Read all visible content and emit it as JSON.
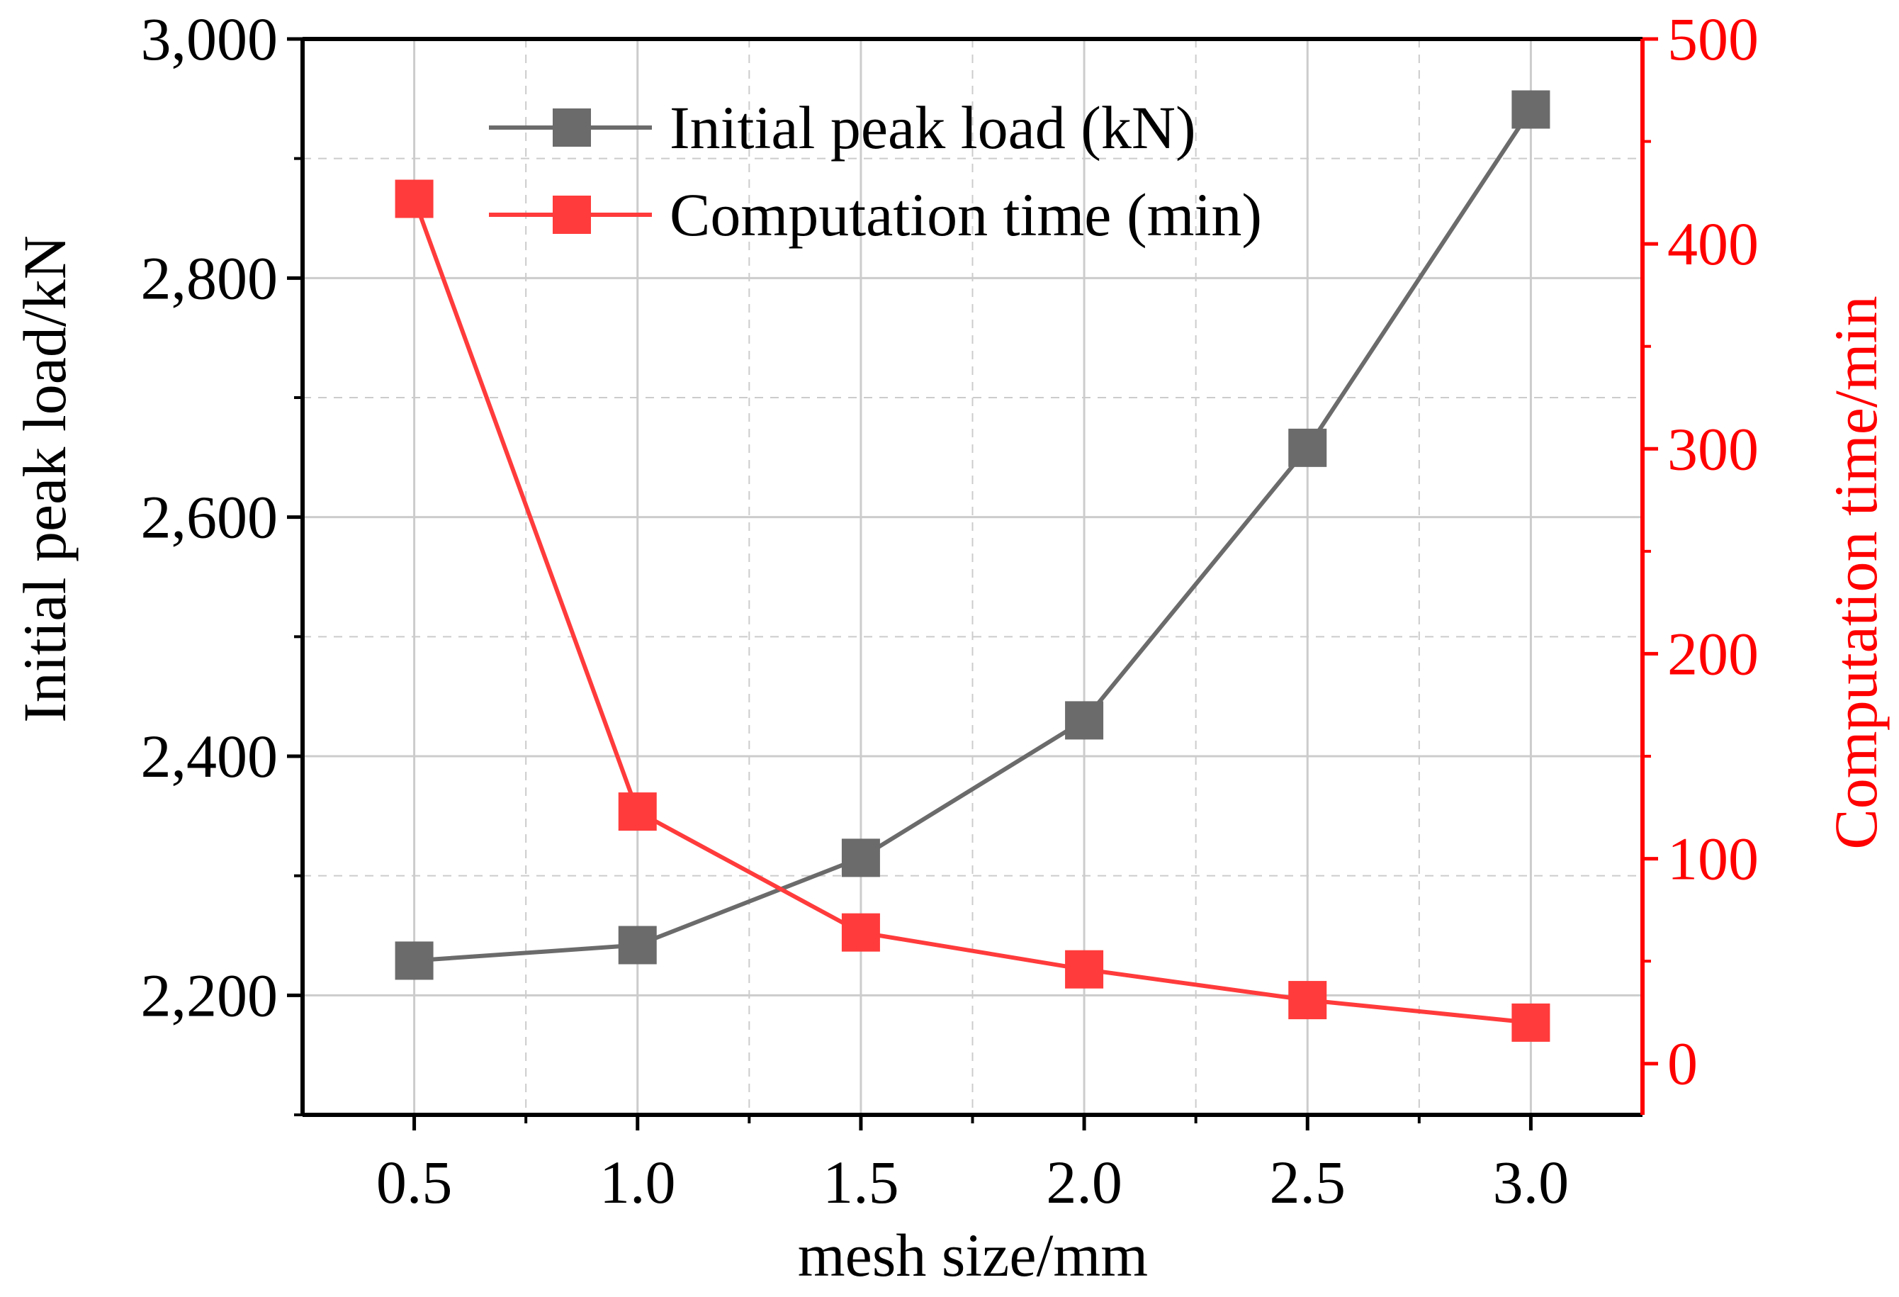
{
  "chart_data": {
    "type": "line",
    "x": [
      0.5,
      1.0,
      1.5,
      2.0,
      2.5,
      3.0
    ],
    "xlabel": "mesh size/mm",
    "xlim": [
      0.25,
      3.25
    ],
    "x_ticks": [
      "0.5",
      "1.0",
      "1.5",
      "2.0",
      "2.5",
      "3.0"
    ],
    "y_left": {
      "label": "Initial peak load/kN",
      "lim": [
        2100,
        3000
      ],
      "ticks": [
        "2,200",
        "2,400",
        "2,600",
        "2,800",
        "3,000"
      ],
      "color": "#000000"
    },
    "y_right": {
      "label": "Computation time/min",
      "lim": [
        -25,
        500
      ],
      "ticks": [
        "0",
        "100",
        "200",
        "300",
        "400",
        "500"
      ],
      "color": "#ff0000"
    },
    "series": [
      {
        "name": "Initial peak load (kN)",
        "axis": "left",
        "color": "#6b6b6b",
        "marker": "square",
        "values": [
          2229,
          2242,
          2315,
          2430,
          2658,
          2941
        ]
      },
      {
        "name": "Computation time (min)",
        "axis": "right",
        "color": "#ff3b3b",
        "marker": "square",
        "values": [
          422,
          123,
          64,
          46,
          31,
          20
        ]
      }
    ],
    "legend_position": "top-center",
    "grid": true
  }
}
